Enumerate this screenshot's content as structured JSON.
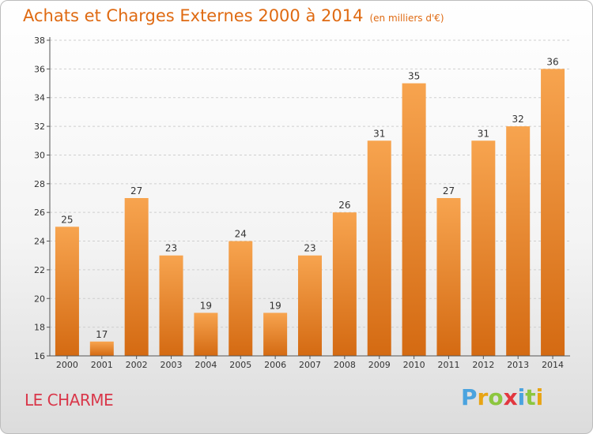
{
  "header": {
    "title": "Achats et Charges Externes 2000 à 2014",
    "subtitle": "(en milliers d'€)"
  },
  "footer": {
    "place": "LE CHARME",
    "logo_letters": [
      "P",
      "r",
      "o",
      "x",
      "i",
      "t",
      "i"
    ],
    "logo_colors": [
      "#4aa3df",
      "#e8a413",
      "#8cc63f",
      "#e2373f",
      "#4aa3df",
      "#8cc63f",
      "#e8a413"
    ]
  },
  "colors": {
    "title": "#df6a12",
    "place": "#d9374a",
    "bar_top": "#f7a44f",
    "bar_bottom": "#d46a12"
  },
  "chart_data": {
    "type": "bar",
    "categories": [
      "2000",
      "2001",
      "2002",
      "2003",
      "2004",
      "2005",
      "2006",
      "2007",
      "2008",
      "2009",
      "2010",
      "2011",
      "2012",
      "2013",
      "2014"
    ],
    "values": [
      25,
      17,
      27,
      23,
      19,
      24,
      19,
      23,
      26,
      31,
      35,
      27,
      31,
      32,
      36
    ],
    "ylim": [
      16,
      38
    ],
    "yticks": [
      "16",
      "18",
      "20",
      "22",
      "24",
      "26",
      "28",
      "30",
      "32",
      "34",
      "36",
      "38"
    ],
    "grid": "horizontal-dashed",
    "data_labels": true
  }
}
